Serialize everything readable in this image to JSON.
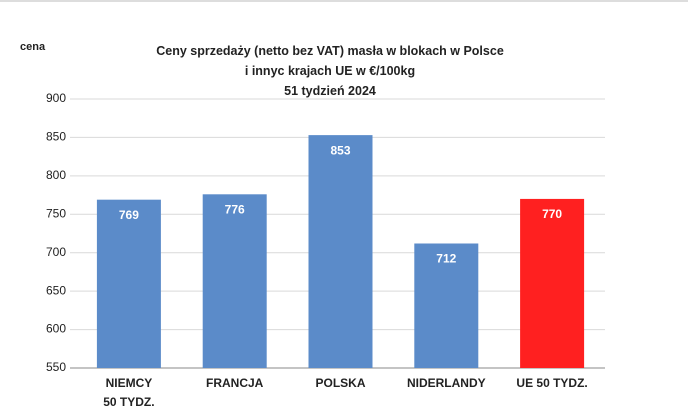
{
  "chart_data": {
    "type": "bar",
    "title": "Ceny sprzedaży (netto bez VAT) masła w blokach w Polsce\ni innyc krajach UE w €/100kg\n51 tydzień 2024",
    "y_label": "cena",
    "categories": [
      "NIEMCY\n50 TYDZ.",
      "FRANCJA",
      "POLSKA",
      "NIDERLANDY",
      "UE  50 TYDZ."
    ],
    "values": [
      769,
      776,
      853,
      712,
      770
    ],
    "colors": [
      "#5b8bc9",
      "#5b8bc9",
      "#5b8bc9",
      "#5b8bc9",
      "#ff2020"
    ],
    "ylim": [
      550,
      900
    ],
    "yticks": [
      550,
      600,
      650,
      700,
      750,
      800,
      850,
      900
    ],
    "grid": true
  }
}
